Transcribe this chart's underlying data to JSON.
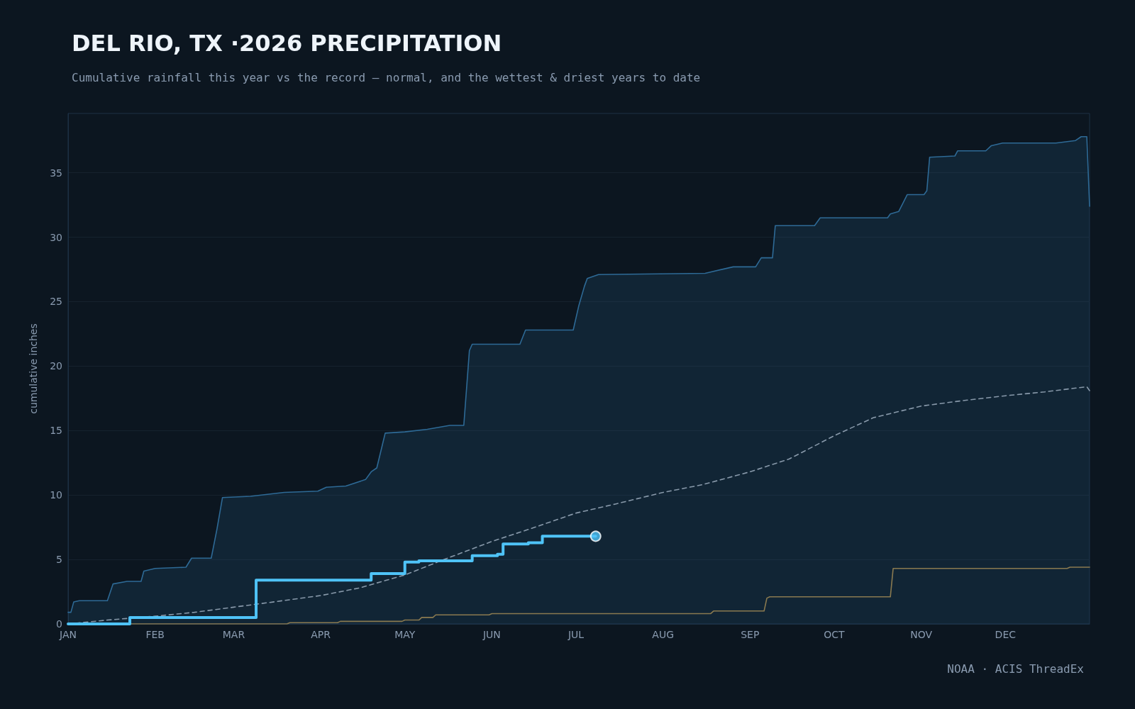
{
  "chart_data": {
    "type": "line",
    "title": "DEL RIO, TX ·2026 PRECIPITATION",
    "subtitle": "Cumulative rainfall this year vs the record — normal, and the wettest & driest years to date",
    "ylabel": "cumulative inches",
    "annotations": [
      "NOAA · ACIS ThreadEx"
    ],
    "xlim": [
      "--01-01",
      "--12-31"
    ],
    "xticks": [
      {
        "value": "--01-01",
        "label": "JAN"
      },
      {
        "value": "--02-01",
        "label": "FEB"
      },
      {
        "value": "--03-01",
        "label": "MAR"
      },
      {
        "value": "--04-01",
        "label": "APR"
      },
      {
        "value": "--05-01",
        "label": "MAY"
      },
      {
        "value": "--06-01",
        "label": "JUN"
      },
      {
        "value": "--07-01",
        "label": "JUL"
      },
      {
        "value": "--08-01",
        "label": "AUG"
      },
      {
        "value": "--09-01",
        "label": "SEP"
      },
      {
        "value": "--10-01",
        "label": "OCT"
      },
      {
        "value": "--11-01",
        "label": "NOV"
      },
      {
        "value": "--12-01",
        "label": "DEC"
      }
    ],
    "ylim": [
      0,
      39.6
    ],
    "yticks": [
      0,
      5,
      10,
      15,
      20,
      25,
      30,
      35
    ],
    "grid": "y",
    "series": [
      {
        "type": "area",
        "color": "#2e6a96",
        "marker": "none",
        "line_style": "solid",
        "x": [
          "--01-01",
          "--01-02",
          "--01-03",
          "--01-05",
          "--01-15",
          "--01-17",
          "--01-22",
          "--01-27",
          "--01-28",
          "--02-01",
          "--02-12",
          "--02-14",
          "--02-21",
          "--02-23",
          "--02-25",
          "--03-07",
          "--03-19",
          "--03-31",
          "--04-03",
          "--04-10",
          "--04-17",
          "--04-19",
          "--04-21",
          "--04-23",
          "--04-24",
          "--05-01",
          "--05-09",
          "--05-17",
          "--05-22",
          "--05-24",
          "--05-25",
          "--06-11",
          "--06-13",
          "--06-30",
          "--07-02",
          "--07-04",
          "--07-05",
          "--07-09",
          "--08-16",
          "--08-26",
          "--09-03",
          "--09-05",
          "--09-09",
          "--09-10",
          "--09-24",
          "--09-26",
          "--10-20",
          "--10-21",
          "--10-24",
          "--10-27",
          "--11-02",
          "--11-03",
          "--11-04",
          "--11-13",
          "--11-14",
          "--11-24",
          "--11-26",
          "--11-30",
          "--12-19",
          "--12-26",
          "--12-28",
          "--12-30",
          "--12-31"
        ],
        "values": [
          0.9,
          0.9,
          1.7,
          1.8,
          1.8,
          3.1,
          3.3,
          3.3,
          4.1,
          4.3,
          4.4,
          5.1,
          5.1,
          7.3,
          9.8,
          9.9,
          10.2,
          10.3,
          10.6,
          10.7,
          11.2,
          11.8,
          12.1,
          13.9,
          14.8,
          14.9,
          15.1,
          15.4,
          15.4,
          21.2,
          21.7,
          21.7,
          22.8,
          22.8,
          24.7,
          26.2,
          26.8,
          27.1,
          27.2,
          27.7,
          27.7,
          28.4,
          28.4,
          30.9,
          30.9,
          31.5,
          31.5,
          31.8,
          32.0,
          33.3,
          33.3,
          33.6,
          36.2,
          36.3,
          36.7,
          36.7,
          37.1,
          37.3,
          37.3,
          37.5,
          37.8,
          37.8,
          32.4
        ]
      },
      {
        "color": "#8a7a50",
        "marker": "none",
        "line_style": "solid",
        "x": [
          "--01-01",
          "--03-20",
          "--03-21",
          "--04-07",
          "--04-08",
          "--04-30",
          "--05-01",
          "--05-06",
          "--05-07",
          "--05-11",
          "--05-12",
          "--05-31",
          "--06-01",
          "--08-18",
          "--08-19",
          "--09-06",
          "--09-07",
          "--09-08",
          "--10-21",
          "--10-22",
          "--12-23",
          "--12-24",
          "--12-31"
        ],
        "values": [
          0,
          0,
          0.1,
          0.1,
          0.2,
          0.2,
          0.3,
          0.3,
          0.5,
          0.5,
          0.7,
          0.7,
          0.8,
          0.8,
          1.0,
          1.0,
          2.0,
          2.1,
          2.1,
          4.3,
          4.3,
          4.4,
          4.4
        ]
      },
      {
        "color": "#8899aa",
        "marker": "none",
        "line_style": "dashed",
        "x": [
          "--01-01",
          "--01-15",
          "--02-01",
          "--02-15",
          "--03-01",
          "--03-15",
          "--04-01",
          "--04-15",
          "--05-01",
          "--05-15",
          "--06-01",
          "--06-15",
          "--07-01",
          "--07-15",
          "--08-01",
          "--08-15",
          "--09-01",
          "--09-15",
          "--10-01",
          "--10-15",
          "--11-01",
          "--11-15",
          "--12-01",
          "--12-15",
          "--12-30",
          "--12-31"
        ],
        "values": [
          0,
          0.3,
          0.6,
          0.9,
          1.3,
          1.7,
          2.2,
          2.8,
          3.8,
          5.0,
          6.4,
          7.4,
          8.6,
          9.3,
          10.2,
          10.8,
          11.8,
          12.8,
          14.6,
          16.0,
          16.9,
          17.3,
          17.7,
          18.0,
          18.4,
          18.1
        ]
      },
      {
        "type": "step",
        "color": "#4fc3f7",
        "marker": "none",
        "line_style": "solid",
        "x": [
          "--01-01",
          "--01-23",
          "--03-09",
          "--04-19",
          "--05-01",
          "--05-06",
          "--05-25",
          "--06-03",
          "--06-05",
          "--06-14",
          "--06-19",
          "--07-08"
        ],
        "values": [
          0,
          0.5,
          3.4,
          3.9,
          4.8,
          4.9,
          5.3,
          5.4,
          6.2,
          6.3,
          6.8,
          6.8
        ]
      },
      {
        "type": "scatter",
        "color": "#4fc3f7",
        "marker": "circle",
        "x": [
          "--07-08"
        ],
        "values": [
          6.8
        ]
      }
    ]
  }
}
